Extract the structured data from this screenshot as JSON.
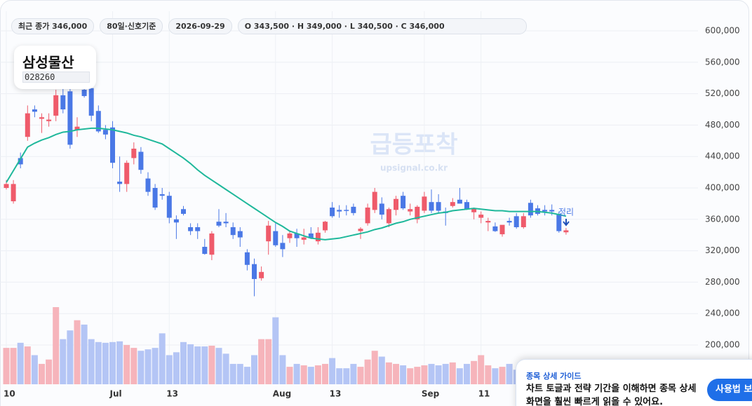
{
  "header": {
    "chips": [
      "최근 종가 346,000",
      "80일·신호기준",
      "2026-09-29",
      "O 343,500 · H 349,000 · L 340,500 · C 346,000"
    ]
  },
  "stock": {
    "name": "삼성물산",
    "code": "028260"
  },
  "watermark": {
    "title": "급등포착",
    "url": "upsignal.co.kr"
  },
  "guide": {
    "title": "종목 상세 가이드",
    "body": "차트 토글과 전략 기간을 이해하면 종목 상세 화면을 훨씬 빠르게 읽을 수 있어요.",
    "button": "사용법 보기"
  },
  "chart_data": {
    "type": "candlestick",
    "annotation": "정리",
    "categories": [
      "10",
      null,
      null,
      null,
      null,
      null,
      null,
      null,
      null,
      null,
      null,
      null,
      null,
      null,
      null,
      "Jul",
      null,
      null,
      null,
      null,
      null,
      null,
      null,
      "13",
      null,
      null,
      null,
      null,
      null,
      null,
      null,
      null,
      null,
      null,
      null,
      null,
      null,
      null,
      "Aug",
      null,
      null,
      null,
      null,
      null,
      null,
      null,
      "13",
      null,
      null,
      null,
      null,
      null,
      null,
      null,
      null,
      null,
      null,
      null,
      null,
      "Sep",
      null,
      null,
      null,
      null,
      null,
      null,
      null,
      "11",
      null,
      null,
      null,
      null,
      null,
      null,
      null,
      null,
      null,
      null,
      null,
      null
    ],
    "up_color": "#ef5b6b",
    "down_color": "#4a78e6",
    "open": [
      400000,
      383000,
      438000,
      465000,
      500000,
      488000,
      485000,
      492000,
      518000,
      523000,
      474000,
      525000,
      527000,
      498000,
      474000,
      477000,
      408000,
      405000,
      438000,
      446000,
      412000,
      400000,
      392000,
      390000,
      360000,
      373000,
      350000,
      350000,
      325000,
      315000,
      357000,
      357000,
      350000,
      345000,
      318000,
      303000,
      285000,
      332000,
      345000,
      330000,
      336000,
      342000,
      334000,
      342000,
      332000,
      346000,
      375000,
      372000,
      372000,
      376000,
      345000,
      355000,
      372000,
      380000,
      355000,
      372000,
      390000,
      370000,
      360000,
      371000,
      382000,
      382000,
      370000,
      377000,
      385000,
      382000,
      369000,
      362000,
      356000,
      351000,
      341000,
      358000,
      364000,
      350000,
      381000,
      374000,
      372000,
      372000,
      367000,
      343500
    ],
    "high": [
      410000,
      410000,
      445000,
      505000,
      505000,
      495000,
      495000,
      525000,
      530000,
      535000,
      490000,
      535000,
      535000,
      505000,
      480000,
      485000,
      440000,
      435000,
      458000,
      452000,
      420000,
      405000,
      400000,
      395000,
      365000,
      377000,
      355000,
      355000,
      335000,
      345000,
      373000,
      368000,
      356000,
      350000,
      322000,
      310000,
      300000,
      358000,
      355000,
      340000,
      345000,
      348000,
      348000,
      350000,
      350000,
      358000,
      382000,
      378000,
      378000,
      380000,
      350000,
      380000,
      400000,
      388000,
      375000,
      390000,
      395000,
      380000,
      378000,
      395000,
      398000,
      392000,
      375000,
      387000,
      400000,
      385000,
      375000,
      370000,
      362000,
      356000,
      352000,
      362000,
      368000,
      368000,
      385000,
      378000,
      378000,
      379000,
      370000,
      349000
    ],
    "low": [
      398000,
      380000,
      425000,
      460000,
      490000,
      470000,
      478000,
      485000,
      495000,
      450000,
      465000,
      515000,
      485000,
      470000,
      462000,
      425000,
      395000,
      395000,
      430000,
      418000,
      390000,
      372000,
      385000,
      355000,
      335000,
      365000,
      340000,
      335000,
      315000,
      308000,
      350000,
      350000,
      335000,
      325000,
      295000,
      262000,
      282000,
      315000,
      325000,
      312000,
      330000,
      325000,
      328000,
      335000,
      328000,
      343000,
      362000,
      362000,
      365000,
      365000,
      335000,
      352000,
      368000,
      360000,
      350000,
      365000,
      372000,
      365000,
      355000,
      368000,
      368000,
      368000,
      352000,
      375000,
      380000,
      372000,
      360000,
      355000,
      345000,
      344000,
      338000,
      352000,
      348000,
      348000,
      362000,
      365000,
      365000,
      365000,
      343000,
      340500
    ],
    "close": [
      405000,
      405000,
      430000,
      495000,
      497000,
      490000,
      487000,
      518000,
      500000,
      455000,
      478000,
      517000,
      492000,
      472000,
      468000,
      432000,
      405000,
      432000,
      450000,
      423000,
      395000,
      375000,
      390000,
      362000,
      356000,
      367000,
      345000,
      345000,
      316000,
      342000,
      352000,
      355000,
      340000,
      337000,
      302000,
      284000,
      293000,
      352000,
      327000,
      322000,
      342000,
      336000,
      337000,
      336000,
      343000,
      357000,
      364000,
      370000,
      371000,
      368000,
      348000,
      375000,
      395000,
      366000,
      373000,
      386000,
      374000,
      373000,
      376000,
      389000,
      371000,
      371000,
      368000,
      382000,
      380000,
      373000,
      374000,
      366000,
      358000,
      345000,
      353000,
      356000,
      350000,
      364000,
      365000,
      367000,
      370000,
      370000,
      345000,
      346000
    ],
    "ma": {
      "color": "#1fb89b",
      "values": [
        407000,
        422000,
        437000,
        452000,
        457000,
        461000,
        464000,
        468000,
        471000,
        472000,
        474000,
        475000,
        476000,
        476000,
        475000,
        474000,
        472000,
        470000,
        467000,
        465000,
        462000,
        459000,
        456000,
        450000,
        444000,
        438000,
        431000,
        423000,
        416000,
        410000,
        404000,
        398000,
        392000,
        386000,
        380000,
        374000,
        368000,
        362000,
        356000,
        351000,
        345000,
        342000,
        339000,
        336000,
        335000,
        334000,
        335000,
        336000,
        338000,
        340000,
        342000,
        344000,
        347000,
        349000,
        352000,
        355000,
        357000,
        360000,
        362000,
        364000,
        366000,
        368000,
        369000,
        371000,
        372000,
        373000,
        374000,
        373000,
        372000,
        371000,
        371000,
        370000,
        370000,
        370000,
        370000,
        370000,
        369000,
        368000,
        366000,
        364000
      ]
    },
    "volume": {
      "up_color": "#f6b4bb",
      "down_color": "#b4c5f5",
      "values": [
        50,
        50,
        57,
        52,
        40,
        28,
        34,
        106,
        62,
        74,
        88,
        82,
        62,
        58,
        57,
        58,
        59,
        54,
        50,
        46,
        48,
        50,
        70,
        40,
        44,
        58,
        55,
        52,
        52,
        53,
        50,
        42,
        28,
        28,
        24,
        40,
        62,
        62,
        92,
        40,
        24,
        28,
        26,
        24,
        26,
        28,
        36,
        22,
        22,
        28,
        24,
        34,
        46,
        38,
        30,
        28,
        26,
        22,
        24,
        26,
        28,
        26,
        28,
        30,
        22,
        28,
        32,
        40,
        26,
        22,
        24,
        28,
        20,
        18,
        22,
        18,
        20,
        18,
        22,
        14
      ]
    },
    "ylim": [
      150000,
      625000
    ],
    "yticks": [
      {
        "value": 200000,
        "label": "200,000"
      },
      {
        "value": 240000,
        "label": "240,000"
      },
      {
        "value": 280000,
        "label": "280,000"
      },
      {
        "value": 320000,
        "label": "320,000"
      },
      {
        "value": 360000,
        "label": "360,000"
      },
      {
        "value": 400000,
        "label": "400,000"
      },
      {
        "value": 440000,
        "label": "440,000"
      },
      {
        "value": 480000,
        "label": "480,000"
      },
      {
        "value": 520000,
        "label": "520,000"
      },
      {
        "value": 560000,
        "label": "560,000"
      },
      {
        "value": 600000,
        "label": "600,000"
      }
    ],
    "grid": true
  }
}
